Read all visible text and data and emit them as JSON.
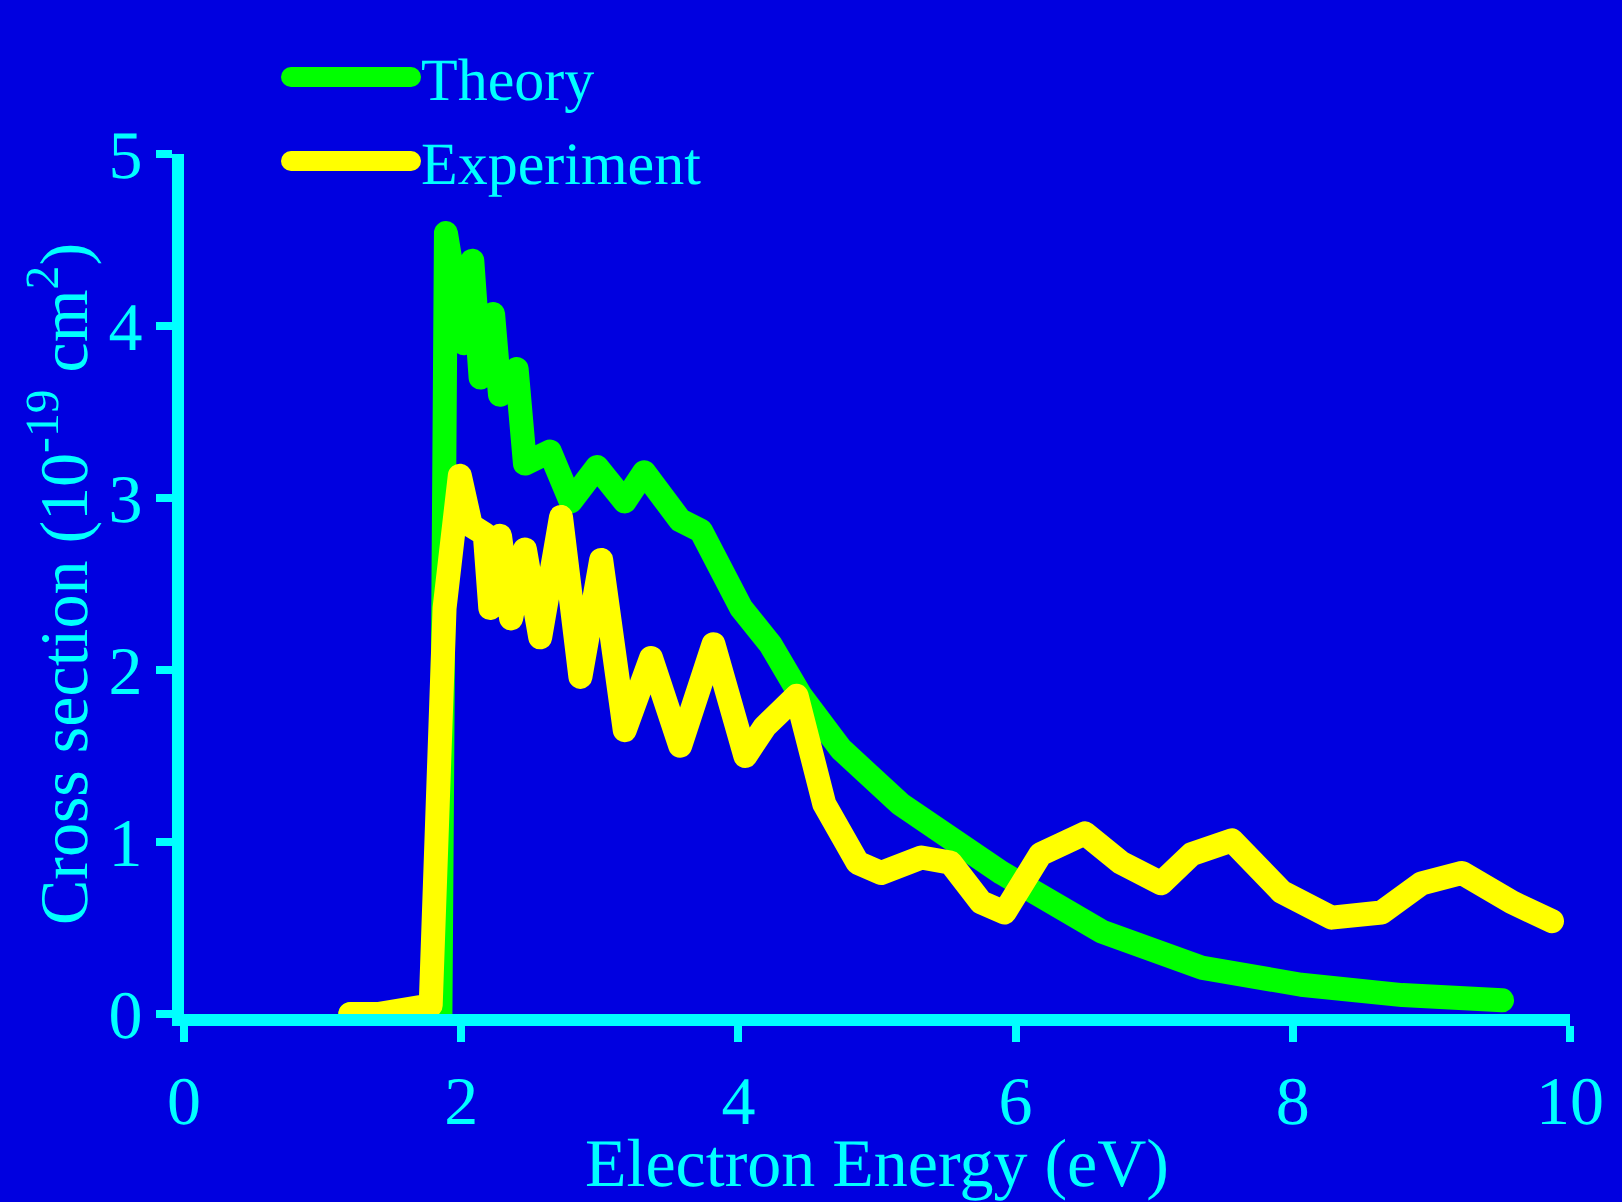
{
  "chart_data": {
    "type": "line",
    "xlabel": "Electron Energy (eV)",
    "ylabel": "Cross section (10$^{-19}$ cm$^{2}$)",
    "xlim": [
      0,
      10
    ],
    "xticks": [
      0,
      2,
      4,
      6,
      8,
      10
    ],
    "ylim": [
      0,
      5
    ],
    "yticks": [
      0,
      1,
      2,
      3,
      4,
      5
    ],
    "grid": false,
    "legend": "top left",
    "line_style": "solid",
    "series": [
      {
        "name": "Theory",
        "color": "#00ff00",
        "x": [
          1.2,
          1.5,
          1.85,
          1.89,
          2.02,
          2.08,
          2.14,
          2.23,
          2.28,
          2.4,
          2.46,
          2.64,
          2.79,
          2.98,
          3.18,
          3.32,
          3.58,
          3.73,
          4.02,
          4.23,
          4.45,
          4.74,
          5.17,
          5.9,
          6.62,
          7.34,
          8.06,
          8.79,
          9.51
        ],
        "values": [
          0,
          0,
          0,
          4.54,
          3.9,
          4.38,
          3.7,
          4.07,
          3.6,
          3.75,
          3.2,
          3.27,
          2.98,
          3.18,
          2.98,
          3.15,
          2.87,
          2.81,
          2.36,
          2.15,
          1.85,
          1.54,
          1.22,
          0.82,
          0.48,
          0.27,
          0.17,
          0.11,
          0.08
        ]
      },
      {
        "name": "Experiment",
        "color": "#ffff00",
        "x": [
          1.2,
          1.4,
          1.78,
          1.88,
          1.99,
          2.07,
          2.17,
          2.21,
          2.28,
          2.36,
          2.46,
          2.57,
          2.72,
          2.86,
          3.01,
          3.18,
          3.37,
          3.58,
          3.82,
          4.05,
          4.19,
          4.42,
          4.62,
          4.86,
          5.03,
          5.32,
          5.53,
          5.75,
          5.92,
          6.18,
          6.5,
          6.76,
          7.05,
          7.27,
          7.56,
          7.92,
          8.28,
          8.64,
          8.93,
          9.22,
          9.58,
          9.87
        ],
        "values": [
          0,
          0,
          0.05,
          2.36,
          3.13,
          2.84,
          2.79,
          2.36,
          2.78,
          2.3,
          2.7,
          2.19,
          2.89,
          1.96,
          2.64,
          1.65,
          2.07,
          1.56,
          2.15,
          1.5,
          1.67,
          1.85,
          1.22,
          0.88,
          0.82,
          0.91,
          0.88,
          0.65,
          0.59,
          0.93,
          1.05,
          0.88,
          0.76,
          0.93,
          1.01,
          0.71,
          0.56,
          0.59,
          0.76,
          0.82,
          0.65,
          0.54
        ]
      }
    ]
  }
}
